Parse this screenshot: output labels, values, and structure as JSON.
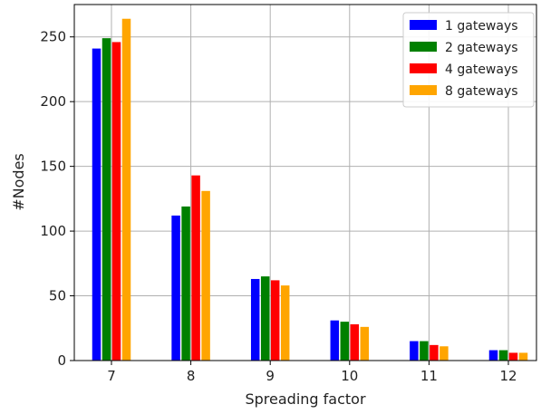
{
  "chart_data": {
    "type": "bar",
    "categories": [
      "7",
      "8",
      "9",
      "10",
      "11",
      "12"
    ],
    "series": [
      {
        "name": "1 gateways",
        "color": "#0000ff",
        "values": [
          241,
          112,
          63,
          31,
          15,
          8
        ]
      },
      {
        "name": "2 gateways",
        "color": "#008000",
        "values": [
          249,
          119,
          65,
          30,
          15,
          8
        ]
      },
      {
        "name": "4 gateways",
        "color": "#ff0000",
        "values": [
          246,
          143,
          62,
          28,
          12,
          6
        ]
      },
      {
        "name": "8 gateways",
        "color": "#ffa500",
        "values": [
          264,
          131,
          58,
          26,
          11,
          6
        ]
      }
    ],
    "title": "",
    "xlabel": "Spreading factor",
    "ylabel": "#Nodes",
    "ylim": [
      0,
      275
    ],
    "yticks": [
      0,
      50,
      100,
      150,
      200,
      250
    ],
    "grid": true,
    "legend_position": "top-right"
  }
}
